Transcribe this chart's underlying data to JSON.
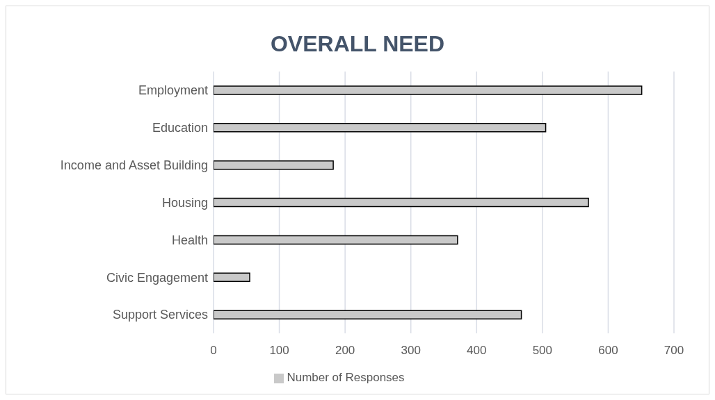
{
  "chart_data": {
    "type": "bar",
    "orientation": "horizontal",
    "title": "OVERALL NEED",
    "categories": [
      "Employment",
      "Education",
      "Income and Asset Building",
      "Housing",
      "Health",
      "Civic Engagement",
      "Support Services"
    ],
    "series": [
      {
        "name": "Number of Responses",
        "color": "#c9c9c9",
        "values": [
          651,
          505,
          182,
          570,
          371,
          55,
          468
        ]
      }
    ],
    "xlim": [
      0,
      700
    ],
    "xticks": [
      0,
      100,
      200,
      300,
      400,
      500,
      600,
      700
    ],
    "grid": "x",
    "legend": "bottom"
  }
}
